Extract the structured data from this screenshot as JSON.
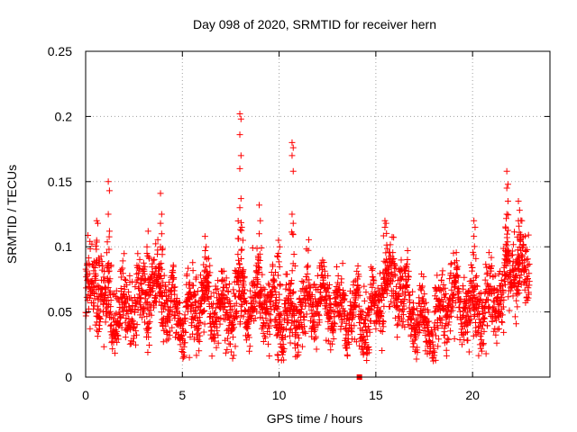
{
  "chart_data": {
    "type": "scatter",
    "title": "Day 098 of 2020, SRMTID for receiver hern",
    "xlabel": "GPS time / hours",
    "ylabel": "SRMTID / TECUs",
    "xlim": [
      0,
      24
    ],
    "ylim": [
      0,
      0.25
    ],
    "xticks": [
      0,
      5,
      10,
      15,
      20
    ],
    "xtick_labels": [
      "0",
      "5",
      "10",
      "15",
      "20"
    ],
    "yticks": [
      0,
      0.05,
      0.1,
      0.15,
      0.2,
      0.25
    ],
    "ytick_labels": [
      "0",
      "0.05",
      "0.1",
      "0.15",
      "0.2",
      "0.25"
    ],
    "grid": true,
    "marker": "plus",
    "color": "#ff0000",
    "baseline": [
      [
        0.0,
        0.058
      ],
      [
        0.5,
        0.068
      ],
      [
        1.0,
        0.055
      ],
      [
        1.5,
        0.05
      ],
      [
        2.0,
        0.052
      ],
      [
        2.5,
        0.054
      ],
      [
        3.0,
        0.06
      ],
      [
        3.5,
        0.065
      ],
      [
        4.0,
        0.062
      ],
      [
        4.5,
        0.05
      ],
      [
        5.0,
        0.045
      ],
      [
        5.5,
        0.052
      ],
      [
        6.0,
        0.058
      ],
      [
        6.5,
        0.055
      ],
      [
        7.0,
        0.052
      ],
      [
        7.5,
        0.05
      ],
      [
        8.0,
        0.06
      ],
      [
        8.5,
        0.055
      ],
      [
        9.0,
        0.058
      ],
      [
        9.5,
        0.052
      ],
      [
        10.0,
        0.046
      ],
      [
        10.5,
        0.048
      ],
      [
        11.0,
        0.05
      ],
      [
        11.5,
        0.055
      ],
      [
        12.0,
        0.058
      ],
      [
        12.5,
        0.055
      ],
      [
        13.0,
        0.052
      ],
      [
        13.5,
        0.05
      ],
      [
        14.0,
        0.048
      ],
      [
        14.5,
        0.046
      ],
      [
        15.0,
        0.05
      ],
      [
        15.5,
        0.068
      ],
      [
        16.0,
        0.075
      ],
      [
        16.5,
        0.06
      ],
      [
        17.0,
        0.045
      ],
      [
        17.5,
        0.038
      ],
      [
        18.0,
        0.035
      ],
      [
        18.5,
        0.055
      ],
      [
        19.0,
        0.062
      ],
      [
        19.5,
        0.055
      ],
      [
        20.0,
        0.05
      ],
      [
        20.5,
        0.055
      ],
      [
        21.0,
        0.058
      ],
      [
        21.5,
        0.065
      ],
      [
        22.0,
        0.085
      ],
      [
        22.5,
        0.08
      ],
      [
        23.0,
        0.075
      ]
    ],
    "spikes": [
      {
        "x": 1.2,
        "values": [
          0.15,
          0.143,
          0.125,
          0.112
        ]
      },
      {
        "x": 0.6,
        "values": [
          0.12,
          0.118,
          0.105
        ]
      },
      {
        "x": 3.2,
        "values": [
          0.1,
          0.112,
          0.095
        ]
      },
      {
        "x": 3.9,
        "values": [
          0.141,
          0.125,
          0.118,
          0.11,
          0.1
        ]
      },
      {
        "x": 6.2,
        "values": [
          0.108,
          0.1,
          0.092
        ]
      },
      {
        "x": 8.0,
        "values": [
          0.202,
          0.198,
          0.186,
          0.17,
          0.16,
          0.137,
          0.13
        ]
      },
      {
        "x": 8.1,
        "values": [
          0.115,
          0.105,
          0.098
        ]
      },
      {
        "x": 9.0,
        "values": [
          0.132,
          0.12,
          0.11
        ]
      },
      {
        "x": 10.0,
        "values": [
          0.105,
          0.1,
          0.095
        ]
      },
      {
        "x": 10.7,
        "values": [
          0.18,
          0.176,
          0.17,
          0.158,
          0.125,
          0.118
        ]
      },
      {
        "x": 15.5,
        "values": [
          0.12,
          0.118,
          0.115
        ]
      },
      {
        "x": 20.1,
        "values": [
          0.12,
          0.115,
          0.108
        ]
      },
      {
        "x": 21.8,
        "values": [
          0.158,
          0.148,
          0.145,
          0.135,
          0.125
        ]
      },
      {
        "x": 22.4,
        "values": [
          0.135,
          0.128,
          0.12
        ]
      }
    ],
    "marked_point": {
      "x": 14.15,
      "y": 0.0,
      "marker": "square",
      "color": "#ff0000"
    }
  }
}
